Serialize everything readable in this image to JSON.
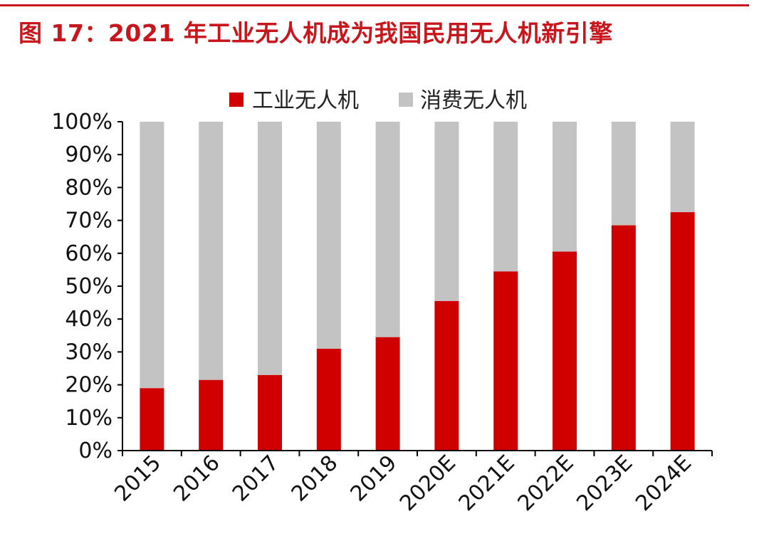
{
  "title": "图 17：2021 年工业无人机成为我国民用无人机新引擎",
  "chart_data": {
    "type": "bar",
    "stacked": true,
    "categories": [
      "2015",
      "2016",
      "2017",
      "2018",
      "2019",
      "2020E",
      "2021E",
      "2022E",
      "2023E",
      "2024E"
    ],
    "series": [
      {
        "name": "工业无人机",
        "color": "#d00000",
        "values": [
          19,
          21.5,
          23,
          31,
          34.5,
          45.5,
          54.5,
          60.5,
          68.5,
          72.5
        ]
      },
      {
        "name": "消费无人机",
        "color": "#c3c3c3",
        "values": [
          81,
          78.5,
          77,
          69,
          65.5,
          54.5,
          45.5,
          39.5,
          31.5,
          27.5
        ]
      }
    ],
    "yticks": [
      "0%",
      "10%",
      "20%",
      "30%",
      "40%",
      "50%",
      "60%",
      "70%",
      "80%",
      "90%",
      "100%"
    ],
    "ylim": [
      0,
      100
    ],
    "legend_position": "top-center"
  }
}
